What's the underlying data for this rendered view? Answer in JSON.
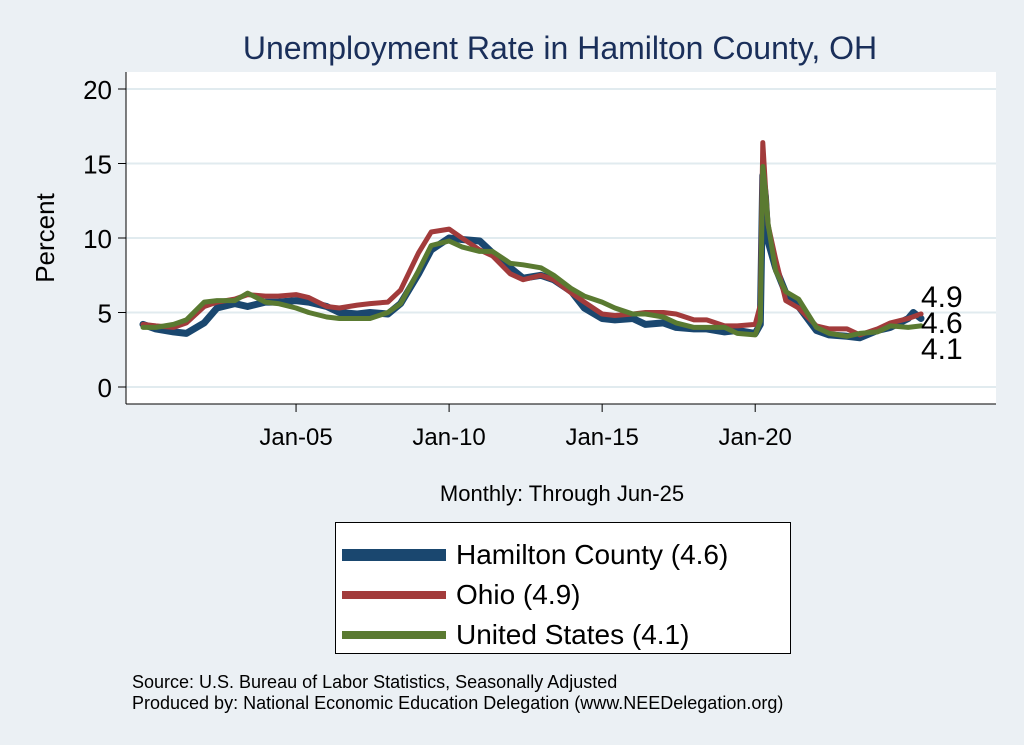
{
  "chart_data": {
    "type": "line",
    "title": "Unemployment Rate in Hamilton  County, OH",
    "xlabel": "Monthly: Through Jun-25",
    "ylabel": "Percent",
    "ylim": [
      0,
      20
    ],
    "yticks": [
      "0",
      "5",
      "10",
      "15",
      "20"
    ],
    "xlim": [
      "2000-01",
      "2025-06"
    ],
    "xticks": [
      {
        "date": "2005-01",
        "label": "Jan-05"
      },
      {
        "date": "2010-01",
        "label": "Jan-10"
      },
      {
        "date": "2015-01",
        "label": "Jan-15"
      },
      {
        "date": "2020-01",
        "label": "Jan-20"
      }
    ],
    "grid": true,
    "legend_position": "bottom",
    "series": [
      {
        "name": "Hamilton  County (4.6)",
        "color": "#1a476f",
        "end_label": "4.6",
        "points": [
          [
            "2000-01",
            4.2
          ],
          [
            "2000-06",
            3.9
          ],
          [
            "2001-01",
            3.7
          ],
          [
            "2001-06",
            3.6
          ],
          [
            "2002-01",
            4.3
          ],
          [
            "2002-06",
            5.3
          ],
          [
            "2003-01",
            5.6
          ],
          [
            "2003-06",
            5.4
          ],
          [
            "2004-01",
            5.7
          ],
          [
            "2004-06",
            5.7
          ],
          [
            "2005-01",
            5.8
          ],
          [
            "2005-06",
            5.7
          ],
          [
            "2006-01",
            5.4
          ],
          [
            "2006-06",
            5.0
          ],
          [
            "2007-01",
            4.9
          ],
          [
            "2007-06",
            5.0
          ],
          [
            "2008-01",
            4.9
          ],
          [
            "2008-06",
            5.6
          ],
          [
            "2009-01",
            7.6
          ],
          [
            "2009-06",
            9.2
          ],
          [
            "2010-01",
            10.0
          ],
          [
            "2010-06",
            9.9
          ],
          [
            "2011-01",
            9.8
          ],
          [
            "2011-06",
            9.0
          ],
          [
            "2012-01",
            8.0
          ],
          [
            "2012-06",
            7.3
          ],
          [
            "2013-01",
            7.5
          ],
          [
            "2013-06",
            7.2
          ],
          [
            "2014-01",
            6.4
          ],
          [
            "2014-06",
            5.3
          ],
          [
            "2015-01",
            4.6
          ],
          [
            "2015-06",
            4.5
          ],
          [
            "2016-01",
            4.6
          ],
          [
            "2016-06",
            4.2
          ],
          [
            "2017-01",
            4.3
          ],
          [
            "2017-06",
            4.0
          ],
          [
            "2018-01",
            3.9
          ],
          [
            "2018-06",
            3.9
          ],
          [
            "2019-01",
            3.7
          ],
          [
            "2019-06",
            3.8
          ],
          [
            "2020-01",
            3.6
          ],
          [
            "2020-03",
            4.2
          ],
          [
            "2020-04",
            14.2
          ],
          [
            "2020-05",
            12.8
          ],
          [
            "2020-06",
            9.8
          ],
          [
            "2020-09",
            8.0
          ],
          [
            "2021-01",
            6.3
          ],
          [
            "2021-06",
            5.4
          ],
          [
            "2022-01",
            3.8
          ],
          [
            "2022-06",
            3.5
          ],
          [
            "2023-01",
            3.4
          ],
          [
            "2023-06",
            3.3
          ],
          [
            "2024-01",
            3.8
          ],
          [
            "2024-06",
            4.0
          ],
          [
            "2025-01",
            4.6
          ],
          [
            "2025-03",
            5.0
          ],
          [
            "2025-06",
            4.6
          ]
        ]
      },
      {
        "name": "Ohio (4.9)",
        "color": "#a23b3b",
        "end_label": "4.9",
        "points": [
          [
            "2000-01",
            4.2
          ],
          [
            "2000-06",
            4.1
          ],
          [
            "2001-01",
            4.0
          ],
          [
            "2001-06",
            4.3
          ],
          [
            "2002-01",
            5.4
          ],
          [
            "2002-06",
            5.7
          ],
          [
            "2003-01",
            5.9
          ],
          [
            "2003-06",
            6.2
          ],
          [
            "2004-01",
            6.1
          ],
          [
            "2004-06",
            6.1
          ],
          [
            "2005-01",
            6.2
          ],
          [
            "2005-06",
            6.0
          ],
          [
            "2006-01",
            5.4
          ],
          [
            "2006-06",
            5.3
          ],
          [
            "2007-01",
            5.5
          ],
          [
            "2007-06",
            5.6
          ],
          [
            "2008-01",
            5.7
          ],
          [
            "2008-06",
            6.5
          ],
          [
            "2009-01",
            9.0
          ],
          [
            "2009-06",
            10.4
          ],
          [
            "2010-01",
            10.6
          ],
          [
            "2010-06",
            10.0
          ],
          [
            "2011-01",
            9.2
          ],
          [
            "2011-06",
            8.8
          ],
          [
            "2012-01",
            7.6
          ],
          [
            "2012-06",
            7.2
          ],
          [
            "2013-01",
            7.5
          ],
          [
            "2013-06",
            7.2
          ],
          [
            "2014-01",
            6.3
          ],
          [
            "2014-06",
            5.7
          ],
          [
            "2015-01",
            4.9
          ],
          [
            "2015-06",
            4.8
          ],
          [
            "2016-01",
            4.9
          ],
          [
            "2016-06",
            5.0
          ],
          [
            "2017-01",
            5.0
          ],
          [
            "2017-06",
            4.9
          ],
          [
            "2018-01",
            4.5
          ],
          [
            "2018-06",
            4.5
          ],
          [
            "2019-01",
            4.1
          ],
          [
            "2019-06",
            4.1
          ],
          [
            "2020-01",
            4.2
          ],
          [
            "2020-03",
            5.5
          ],
          [
            "2020-04",
            16.4
          ],
          [
            "2020-05",
            13.5
          ],
          [
            "2020-06",
            10.9
          ],
          [
            "2020-09",
            8.6
          ],
          [
            "2021-01",
            5.8
          ],
          [
            "2021-06",
            5.3
          ],
          [
            "2022-01",
            4.1
          ],
          [
            "2022-06",
            3.9
          ],
          [
            "2023-01",
            3.9
          ],
          [
            "2023-06",
            3.5
          ],
          [
            "2024-01",
            3.9
          ],
          [
            "2024-06",
            4.3
          ],
          [
            "2025-01",
            4.6
          ],
          [
            "2025-06",
            4.9
          ]
        ]
      },
      {
        "name": "United States (4.1)",
        "color": "#5a7a31",
        "end_label": "4.1",
        "points": [
          [
            "2000-01",
            4.0
          ],
          [
            "2000-06",
            4.0
          ],
          [
            "2001-01",
            4.2
          ],
          [
            "2001-06",
            4.5
          ],
          [
            "2002-01",
            5.7
          ],
          [
            "2002-06",
            5.8
          ],
          [
            "2003-01",
            5.8
          ],
          [
            "2003-06",
            6.3
          ],
          [
            "2004-01",
            5.7
          ],
          [
            "2004-06",
            5.6
          ],
          [
            "2005-01",
            5.3
          ],
          [
            "2005-06",
            5.0
          ],
          [
            "2006-01",
            4.7
          ],
          [
            "2006-06",
            4.6
          ],
          [
            "2007-01",
            4.6
          ],
          [
            "2007-06",
            4.6
          ],
          [
            "2008-01",
            5.0
          ],
          [
            "2008-06",
            5.6
          ],
          [
            "2009-01",
            7.8
          ],
          [
            "2009-06",
            9.5
          ],
          [
            "2010-01",
            9.8
          ],
          [
            "2010-06",
            9.4
          ],
          [
            "2011-01",
            9.1
          ],
          [
            "2011-06",
            9.1
          ],
          [
            "2012-01",
            8.3
          ],
          [
            "2012-06",
            8.2
          ],
          [
            "2013-01",
            8.0
          ],
          [
            "2013-06",
            7.5
          ],
          [
            "2014-01",
            6.6
          ],
          [
            "2014-06",
            6.1
          ],
          [
            "2015-01",
            5.7
          ],
          [
            "2015-06",
            5.3
          ],
          [
            "2016-01",
            4.9
          ],
          [
            "2016-06",
            4.9
          ],
          [
            "2017-01",
            4.7
          ],
          [
            "2017-06",
            4.3
          ],
          [
            "2018-01",
            4.0
          ],
          [
            "2018-06",
            4.0
          ],
          [
            "2019-01",
            4.0
          ],
          [
            "2019-06",
            3.6
          ],
          [
            "2020-01",
            3.5
          ],
          [
            "2020-03",
            4.4
          ],
          [
            "2020-04",
            14.8
          ],
          [
            "2020-05",
            13.2
          ],
          [
            "2020-06",
            11.0
          ],
          [
            "2020-09",
            7.8
          ],
          [
            "2021-01",
            6.4
          ],
          [
            "2021-06",
            5.9
          ],
          [
            "2022-01",
            4.0
          ],
          [
            "2022-06",
            3.6
          ],
          [
            "2023-01",
            3.4
          ],
          [
            "2023-06",
            3.6
          ],
          [
            "2024-01",
            3.7
          ],
          [
            "2024-06",
            4.1
          ],
          [
            "2025-01",
            4.0
          ],
          [
            "2025-06",
            4.1
          ]
        ]
      }
    ]
  },
  "source_text": "Source: U.S. Bureau of Labor Statistics, Seasonally Adjusted",
  "produced_text": "Produced by: National Economic Education Delegation (www.NEEDelegation.org)"
}
